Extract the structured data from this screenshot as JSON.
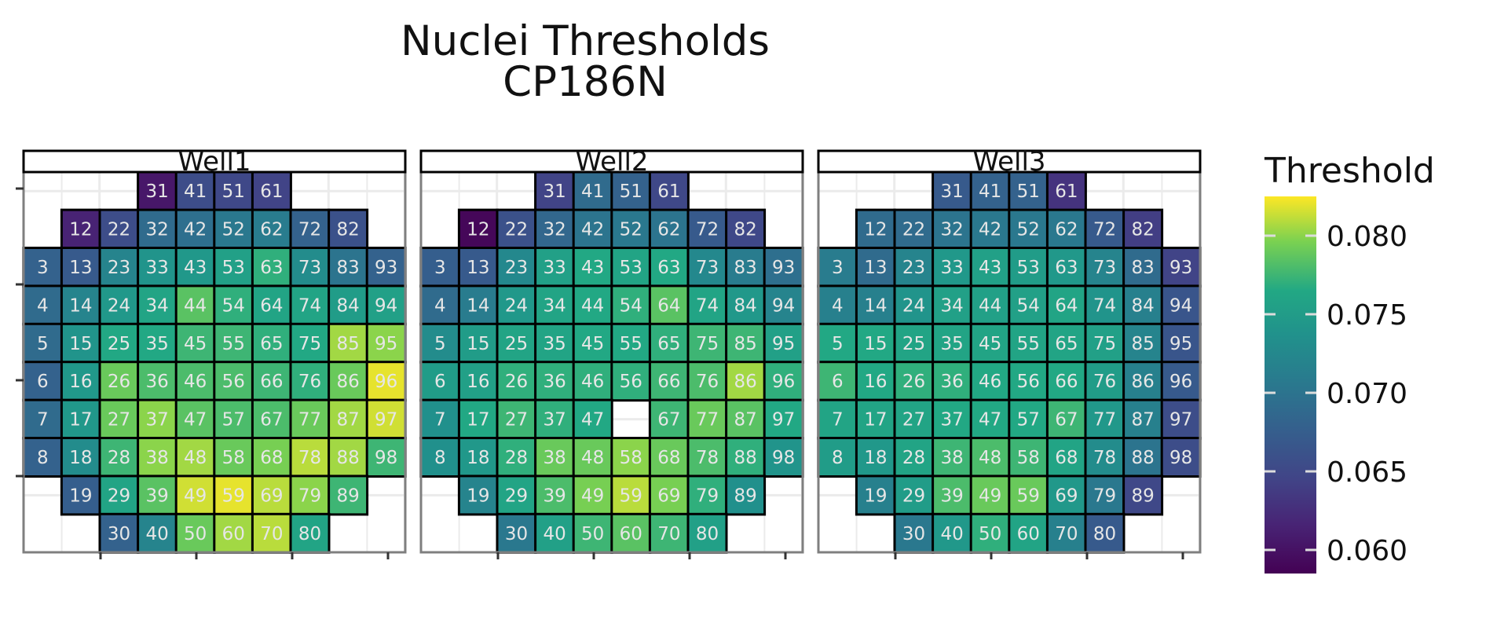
{
  "chart_data": {
    "type": "heatmap",
    "title": "Nuclei Thresholds",
    "subtitle": "CP186N",
    "legend": {
      "title": "Threshold",
      "ticks": [
        0.06,
        0.065,
        0.07,
        0.075,
        0.08
      ],
      "tick_labels": [
        "0.060",
        "0.065",
        "0.070",
        "0.075",
        "0.080"
      ],
      "range": [
        0.0585,
        0.0825
      ],
      "placement": "right"
    },
    "colorscale": "viridis",
    "grid_columns": 10,
    "grid_rows": 10,
    "panels": [
      {
        "label": "Well1",
        "cells": [
          {
            "id": "31",
            "v": 0.0605
          },
          {
            "id": "41",
            "v": 0.0655
          },
          {
            "id": "51",
            "v": 0.065
          },
          {
            "id": "61",
            "v": 0.0645
          },
          {
            "id": "12",
            "v": 0.0615
          },
          {
            "id": "22",
            "v": 0.0655
          },
          {
            "id": "32",
            "v": 0.069
          },
          {
            "id": "42",
            "v": 0.0695
          },
          {
            "id": "52",
            "v": 0.0705
          },
          {
            "id": "62",
            "v": 0.071
          },
          {
            "id": "72",
            "v": 0.068
          },
          {
            "id": "82",
            "v": 0.066
          },
          {
            "id": "3",
            "v": 0.068
          },
          {
            "id": "13",
            "v": 0.067
          },
          {
            "id": "23",
            "v": 0.072
          },
          {
            "id": "33",
            "v": 0.074
          },
          {
            "id": "43",
            "v": 0.0745
          },
          {
            "id": "53",
            "v": 0.0755
          },
          {
            "id": "63",
            "v": 0.077
          },
          {
            "id": "73",
            "v": 0.073
          },
          {
            "id": "83",
            "v": 0.07
          },
          {
            "id": "93",
            "v": 0.068
          },
          {
            "id": "4",
            "v": 0.069
          },
          {
            "id": "14",
            "v": 0.072
          },
          {
            "id": "24",
            "v": 0.0745
          },
          {
            "id": "34",
            "v": 0.076
          },
          {
            "id": "44",
            "v": 0.0785
          },
          {
            "id": "54",
            "v": 0.077
          },
          {
            "id": "64",
            "v": 0.076
          },
          {
            "id": "74",
            "v": 0.076
          },
          {
            "id": "84",
            "v": 0.075
          },
          {
            "id": "94",
            "v": 0.0755
          },
          {
            "id": "5",
            "v": 0.069
          },
          {
            "id": "15",
            "v": 0.074
          },
          {
            "id": "25",
            "v": 0.0765
          },
          {
            "id": "35",
            "v": 0.0765
          },
          {
            "id": "45",
            "v": 0.0775
          },
          {
            "id": "55",
            "v": 0.0775
          },
          {
            "id": "65",
            "v": 0.077
          },
          {
            "id": "75",
            "v": 0.0765
          },
          {
            "id": "85",
            "v": 0.0805
          },
          {
            "id": "95",
            "v": 0.08
          },
          {
            "id": "6",
            "v": 0.068
          },
          {
            "id": "16",
            "v": 0.0745
          },
          {
            "id": "26",
            "v": 0.079
          },
          {
            "id": "36",
            "v": 0.078
          },
          {
            "id": "46",
            "v": 0.078
          },
          {
            "id": "56",
            "v": 0.078
          },
          {
            "id": "66",
            "v": 0.0775
          },
          {
            "id": "76",
            "v": 0.077
          },
          {
            "id": "86",
            "v": 0.079
          },
          {
            "id": "96",
            "v": 0.082
          },
          {
            "id": "7",
            "v": 0.069
          },
          {
            "id": "17",
            "v": 0.0745
          },
          {
            "id": "27",
            "v": 0.079
          },
          {
            "id": "37",
            "v": 0.08
          },
          {
            "id": "47",
            "v": 0.0785
          },
          {
            "id": "57",
            "v": 0.078
          },
          {
            "id": "67",
            "v": 0.078
          },
          {
            "id": "77",
            "v": 0.079
          },
          {
            "id": "87",
            "v": 0.0805
          },
          {
            "id": "97",
            "v": 0.0815
          },
          {
            "id": "8",
            "v": 0.068
          },
          {
            "id": "18",
            "v": 0.073
          },
          {
            "id": "28",
            "v": 0.0775
          },
          {
            "id": "38",
            "v": 0.08
          },
          {
            "id": "48",
            "v": 0.0805
          },
          {
            "id": "58",
            "v": 0.079
          },
          {
            "id": "68",
            "v": 0.0795
          },
          {
            "id": "78",
            "v": 0.081
          },
          {
            "id": "88",
            "v": 0.0805
          },
          {
            "id": "98",
            "v": 0.0775
          },
          {
            "id": "19",
            "v": 0.0675
          },
          {
            "id": "29",
            "v": 0.076
          },
          {
            "id": "39",
            "v": 0.0785
          },
          {
            "id": "49",
            "v": 0.0815
          },
          {
            "id": "59",
            "v": 0.082
          },
          {
            "id": "69",
            "v": 0.081
          },
          {
            "id": "79",
            "v": 0.08
          },
          {
            "id": "89",
            "v": 0.0775
          },
          {
            "id": "30",
            "v": 0.068
          },
          {
            "id": "40",
            "v": 0.072
          },
          {
            "id": "50",
            "v": 0.079
          },
          {
            "id": "60",
            "v": 0.0805
          },
          {
            "id": "70",
            "v": 0.081
          },
          {
            "id": "80",
            "v": 0.076
          }
        ]
      },
      {
        "label": "Well2",
        "cells": [
          {
            "id": "31",
            "v": 0.0645
          },
          {
            "id": "41",
            "v": 0.069
          },
          {
            "id": "51",
            "v": 0.068
          },
          {
            "id": "61",
            "v": 0.065
          },
          {
            "id": "12",
            "v": 0.059
          },
          {
            "id": "22",
            "v": 0.066
          },
          {
            "id": "32",
            "v": 0.0685
          },
          {
            "id": "42",
            "v": 0.07
          },
          {
            "id": "52",
            "v": 0.0705
          },
          {
            "id": "62",
            "v": 0.07
          },
          {
            "id": "72",
            "v": 0.067
          },
          {
            "id": "82",
            "v": 0.065
          },
          {
            "id": "3",
            "v": 0.0675
          },
          {
            "id": "13",
            "v": 0.067
          },
          {
            "id": "23",
            "v": 0.0725
          },
          {
            "id": "33",
            "v": 0.0755
          },
          {
            "id": "43",
            "v": 0.0765
          },
          {
            "id": "53",
            "v": 0.076
          },
          {
            "id": "63",
            "v": 0.0765
          },
          {
            "id": "73",
            "v": 0.0725
          },
          {
            "id": "83",
            "v": 0.071
          },
          {
            "id": "93",
            "v": 0.0695
          },
          {
            "id": "4",
            "v": 0.069
          },
          {
            "id": "14",
            "v": 0.071
          },
          {
            "id": "24",
            "v": 0.0745
          },
          {
            "id": "34",
            "v": 0.076
          },
          {
            "id": "44",
            "v": 0.0765
          },
          {
            "id": "54",
            "v": 0.077
          },
          {
            "id": "64",
            "v": 0.0785
          },
          {
            "id": "74",
            "v": 0.076
          },
          {
            "id": "84",
            "v": 0.0745
          },
          {
            "id": "94",
            "v": 0.072
          },
          {
            "id": "5",
            "v": 0.073
          },
          {
            "id": "15",
            "v": 0.075
          },
          {
            "id": "25",
            "v": 0.076
          },
          {
            "id": "35",
            "v": 0.076
          },
          {
            "id": "45",
            "v": 0.0765
          },
          {
            "id": "55",
            "v": 0.0765
          },
          {
            "id": "65",
            "v": 0.077
          },
          {
            "id": "75",
            "v": 0.0775
          },
          {
            "id": "85",
            "v": 0.0775
          },
          {
            "id": "95",
            "v": 0.0755
          },
          {
            "id": "6",
            "v": 0.075
          },
          {
            "id": "16",
            "v": 0.0755
          },
          {
            "id": "26",
            "v": 0.077
          },
          {
            "id": "36",
            "v": 0.077
          },
          {
            "id": "46",
            "v": 0.077
          },
          {
            "id": "56",
            "v": 0.077
          },
          {
            "id": "66",
            "v": 0.0775
          },
          {
            "id": "76",
            "v": 0.078
          },
          {
            "id": "86",
            "v": 0.0805
          },
          {
            "id": "96",
            "v": 0.077
          },
          {
            "id": "7",
            "v": 0.0735
          },
          {
            "id": "17",
            "v": 0.0765
          },
          {
            "id": "27",
            "v": 0.0775
          },
          {
            "id": "37",
            "v": 0.077
          },
          {
            "id": "47",
            "v": 0.0765
          },
          {
            "id": "67",
            "v": 0.0775
          },
          {
            "id": "77",
            "v": 0.079
          },
          {
            "id": "87",
            "v": 0.0785
          },
          {
            "id": "97",
            "v": 0.0765
          },
          {
            "id": "8",
            "v": 0.0735
          },
          {
            "id": "18",
            "v": 0.0745
          },
          {
            "id": "28",
            "v": 0.077
          },
          {
            "id": "38",
            "v": 0.079
          },
          {
            "id": "48",
            "v": 0.079
          },
          {
            "id": "58",
            "v": 0.08
          },
          {
            "id": "68",
            "v": 0.079
          },
          {
            "id": "78",
            "v": 0.078
          },
          {
            "id": "88",
            "v": 0.077
          },
          {
            "id": "98",
            "v": 0.074
          },
          {
            "id": "19",
            "v": 0.072
          },
          {
            "id": "29",
            "v": 0.076
          },
          {
            "id": "39",
            "v": 0.078
          },
          {
            "id": "49",
            "v": 0.0795
          },
          {
            "id": "59",
            "v": 0.081
          },
          {
            "id": "69",
            "v": 0.0795
          },
          {
            "id": "79",
            "v": 0.077
          },
          {
            "id": "89",
            "v": 0.0735
          },
          {
            "id": "30",
            "v": 0.0705
          },
          {
            "id": "40",
            "v": 0.0755
          },
          {
            "id": "50",
            "v": 0.0775
          },
          {
            "id": "60",
            "v": 0.0785
          },
          {
            "id": "70",
            "v": 0.0775
          },
          {
            "id": "80",
            "v": 0.0755
          }
        ]
      },
      {
        "label": "Well3",
        "cells": [
          {
            "id": "31",
            "v": 0.067
          },
          {
            "id": "41",
            "v": 0.068
          },
          {
            "id": "51",
            "v": 0.068
          },
          {
            "id": "61",
            "v": 0.063
          },
          {
            "id": "12",
            "v": 0.069
          },
          {
            "id": "22",
            "v": 0.069
          },
          {
            "id": "32",
            "v": 0.07
          },
          {
            "id": "42",
            "v": 0.0705
          },
          {
            "id": "52",
            "v": 0.0705
          },
          {
            "id": "62",
            "v": 0.0705
          },
          {
            "id": "72",
            "v": 0.067
          },
          {
            "id": "82",
            "v": 0.064
          },
          {
            "id": "3",
            "v": 0.071
          },
          {
            "id": "13",
            "v": 0.069
          },
          {
            "id": "23",
            "v": 0.072
          },
          {
            "id": "33",
            "v": 0.0745
          },
          {
            "id": "43",
            "v": 0.0755
          },
          {
            "id": "53",
            "v": 0.075
          },
          {
            "id": "63",
            "v": 0.0745
          },
          {
            "id": "73",
            "v": 0.072
          },
          {
            "id": "83",
            "v": 0.069
          },
          {
            "id": "93",
            "v": 0.0645
          },
          {
            "id": "4",
            "v": 0.0715
          },
          {
            "id": "14",
            "v": 0.0715
          },
          {
            "id": "24",
            "v": 0.074
          },
          {
            "id": "34",
            "v": 0.0755
          },
          {
            "id": "44",
            "v": 0.0755
          },
          {
            "id": "54",
            "v": 0.0755
          },
          {
            "id": "64",
            "v": 0.076
          },
          {
            "id": "74",
            "v": 0.074
          },
          {
            "id": "84",
            "v": 0.0715
          },
          {
            "id": "94",
            "v": 0.0665
          },
          {
            "id": "5",
            "v": 0.0765
          },
          {
            "id": "15",
            "v": 0.0765
          },
          {
            "id": "25",
            "v": 0.076
          },
          {
            "id": "35",
            "v": 0.076
          },
          {
            "id": "45",
            "v": 0.076
          },
          {
            "id": "55",
            "v": 0.076
          },
          {
            "id": "65",
            "v": 0.076
          },
          {
            "id": "75",
            "v": 0.0755
          },
          {
            "id": "85",
            "v": 0.072
          },
          {
            "id": "95",
            "v": 0.0665
          },
          {
            "id": "6",
            "v": 0.0775
          },
          {
            "id": "16",
            "v": 0.0765
          },
          {
            "id": "26",
            "v": 0.077
          },
          {
            "id": "36",
            "v": 0.077
          },
          {
            "id": "46",
            "v": 0.0765
          },
          {
            "id": "56",
            "v": 0.0765
          },
          {
            "id": "66",
            "v": 0.0765
          },
          {
            "id": "76",
            "v": 0.075
          },
          {
            "id": "86",
            "v": 0.0715
          },
          {
            "id": "96",
            "v": 0.067
          },
          {
            "id": "7",
            "v": 0.076
          },
          {
            "id": "17",
            "v": 0.076
          },
          {
            "id": "27",
            "v": 0.076
          },
          {
            "id": "37",
            "v": 0.0765
          },
          {
            "id": "47",
            "v": 0.0765
          },
          {
            "id": "57",
            "v": 0.0765
          },
          {
            "id": "67",
            "v": 0.0775
          },
          {
            "id": "77",
            "v": 0.0745
          },
          {
            "id": "87",
            "v": 0.0715
          },
          {
            "id": "97",
            "v": 0.0655
          },
          {
            "id": "8",
            "v": 0.075
          },
          {
            "id": "18",
            "v": 0.0745
          },
          {
            "id": "28",
            "v": 0.076
          },
          {
            "id": "38",
            "v": 0.0775
          },
          {
            "id": "48",
            "v": 0.078
          },
          {
            "id": "58",
            "v": 0.0775
          },
          {
            "id": "68",
            "v": 0.076
          },
          {
            "id": "78",
            "v": 0.073
          },
          {
            "id": "88",
            "v": 0.07
          },
          {
            "id": "98",
            "v": 0.0655
          },
          {
            "id": "19",
            "v": 0.0715
          },
          {
            "id": "29",
            "v": 0.075
          },
          {
            "id": "39",
            "v": 0.078
          },
          {
            "id": "49",
            "v": 0.079
          },
          {
            "id": "59",
            "v": 0.079
          },
          {
            "id": "69",
            "v": 0.0745
          },
          {
            "id": "79",
            "v": 0.0705
          },
          {
            "id": "89",
            "v": 0.065
          },
          {
            "id": "30",
            "v": 0.0705
          },
          {
            "id": "40",
            "v": 0.0745
          },
          {
            "id": "50",
            "v": 0.077
          },
          {
            "id": "60",
            "v": 0.076
          },
          {
            "id": "70",
            "v": 0.0715
          },
          {
            "id": "80",
            "v": 0.067
          }
        ]
      }
    ]
  }
}
